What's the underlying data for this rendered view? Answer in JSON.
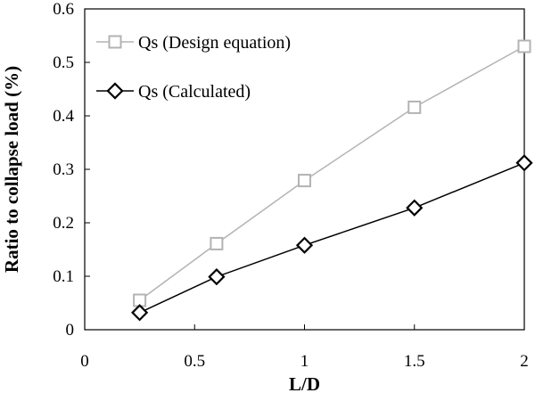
{
  "chart_data": {
    "type": "line",
    "xlabel": "L/D",
    "ylabel": "Ratio to collapse load (%)",
    "xlim": [
      0,
      2
    ],
    "ylim": [
      0,
      0.6
    ],
    "x_ticks": [
      0,
      0.5,
      1,
      1.5,
      2
    ],
    "y_ticks": [
      0,
      0.1,
      0.2,
      0.3,
      0.4,
      0.5,
      0.6
    ],
    "x_tick_labels": [
      "0",
      "0.5",
      "1",
      "1.5",
      "2"
    ],
    "y_tick_labels": [
      "0",
      "0.1",
      "0.2",
      "0.3",
      "0.4",
      "0.5",
      "0.6"
    ],
    "grid": false,
    "legend_position": "top-left",
    "series": [
      {
        "name": "Qs (Design equation)",
        "marker": "square",
        "color": "#b3b3b3",
        "x": [
          0.25,
          0.6,
          1,
          1.5,
          2
        ],
        "y": [
          0.055,
          0.161,
          0.279,
          0.416,
          0.53
        ]
      },
      {
        "name": "Qs (Calculated)",
        "marker": "diamond",
        "color": "#000000",
        "x": [
          0.25,
          0.6,
          1,
          1.5,
          2
        ],
        "y": [
          0.032,
          0.099,
          0.158,
          0.228,
          0.312
        ]
      }
    ]
  }
}
